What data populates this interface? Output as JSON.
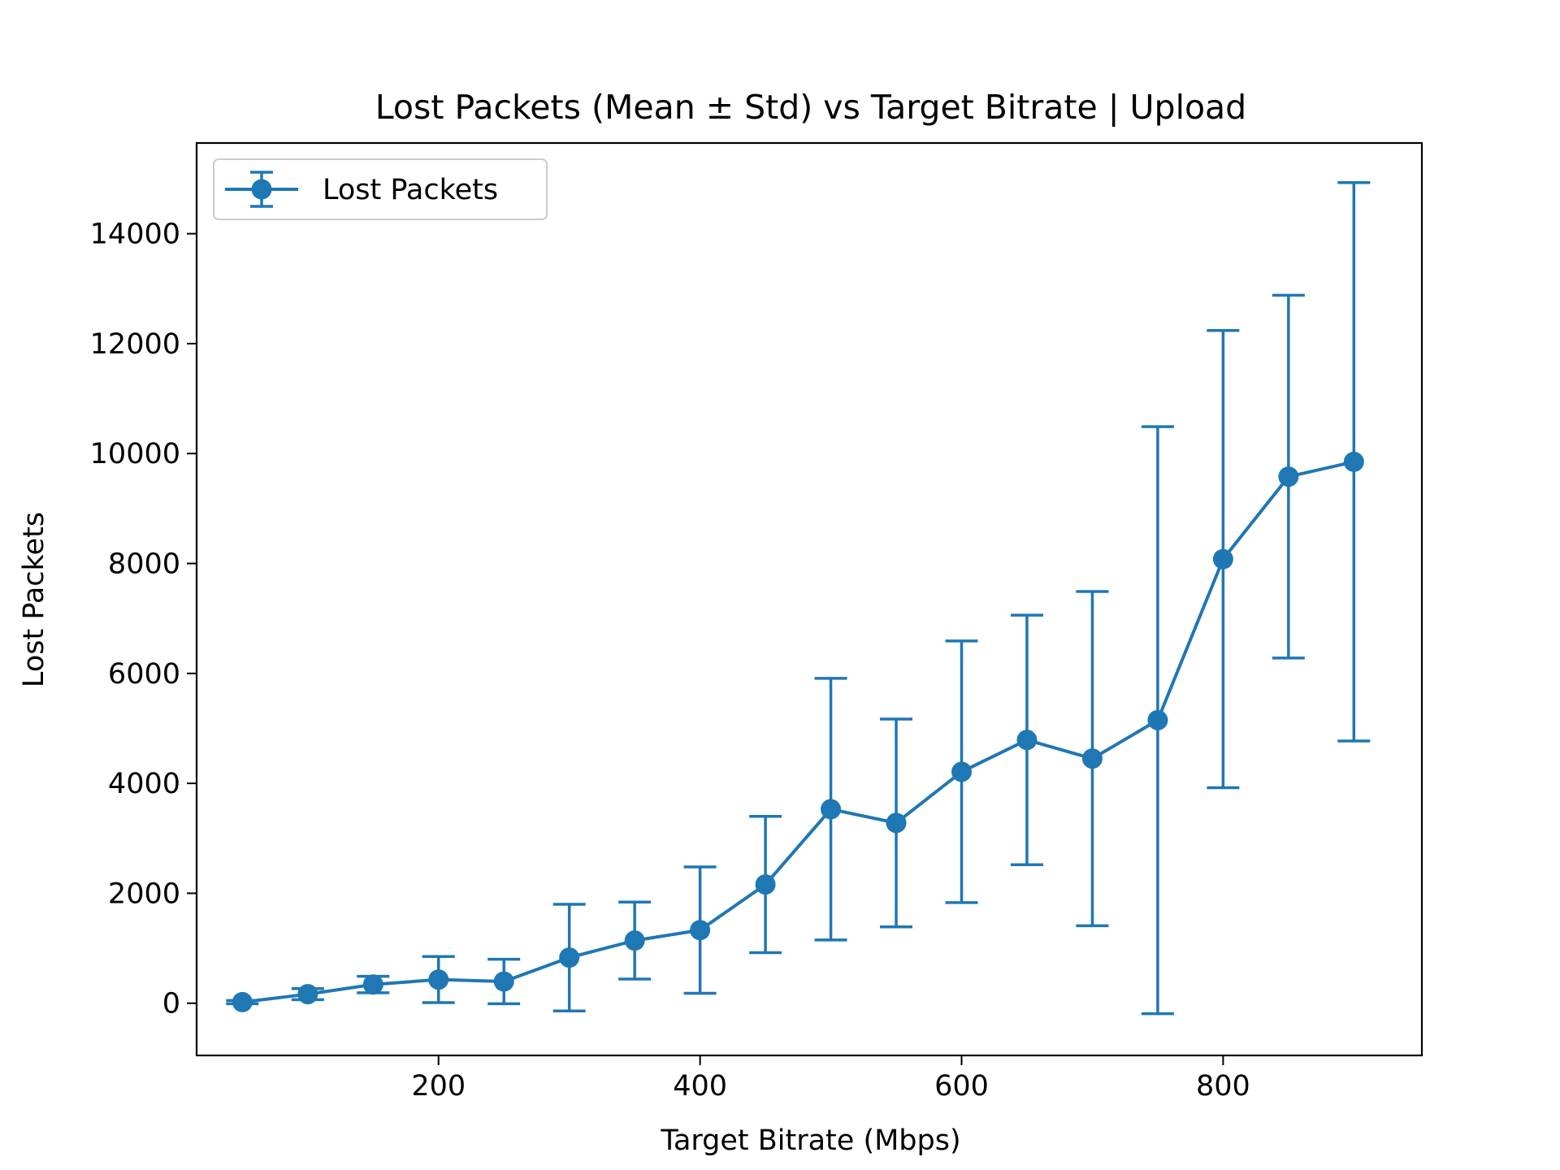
{
  "chart_data": {
    "type": "line",
    "title": "Lost Packets (Mean ± Std) vs Target Bitrate | Upload",
    "xlabel": "Target Bitrate (Mbps)",
    "ylabel": "Lost Packets",
    "xlim": [
      15,
      952
    ],
    "ylim": [
      -950,
      15650
    ],
    "xticks": [
      200,
      400,
      600,
      800
    ],
    "yticks": [
      0,
      2000,
      4000,
      6000,
      8000,
      10000,
      12000,
      14000
    ],
    "grid": false,
    "legend": {
      "position": "top-left",
      "entries": [
        "Lost Packets"
      ]
    },
    "series": [
      {
        "name": "Lost Packets",
        "color": "#1f77b4",
        "marker": "circle",
        "error_bars": true,
        "x": [
          50,
          100,
          150,
          200,
          250,
          300,
          350,
          400,
          450,
          500,
          550,
          600,
          650,
          700,
          750,
          800,
          850,
          900
        ],
        "y": [
          20,
          165,
          340,
          430,
          395,
          830,
          1140,
          1330,
          2160,
          3530,
          3280,
          4210,
          4790,
          4450,
          5150,
          8080,
          9580,
          9850
        ],
        "std": [
          30,
          100,
          150,
          420,
          405,
          970,
          700,
          1150,
          1240,
          2380,
          1890,
          2380,
          2270,
          3040,
          5340,
          4160,
          3300,
          5080
        ]
      }
    ]
  }
}
